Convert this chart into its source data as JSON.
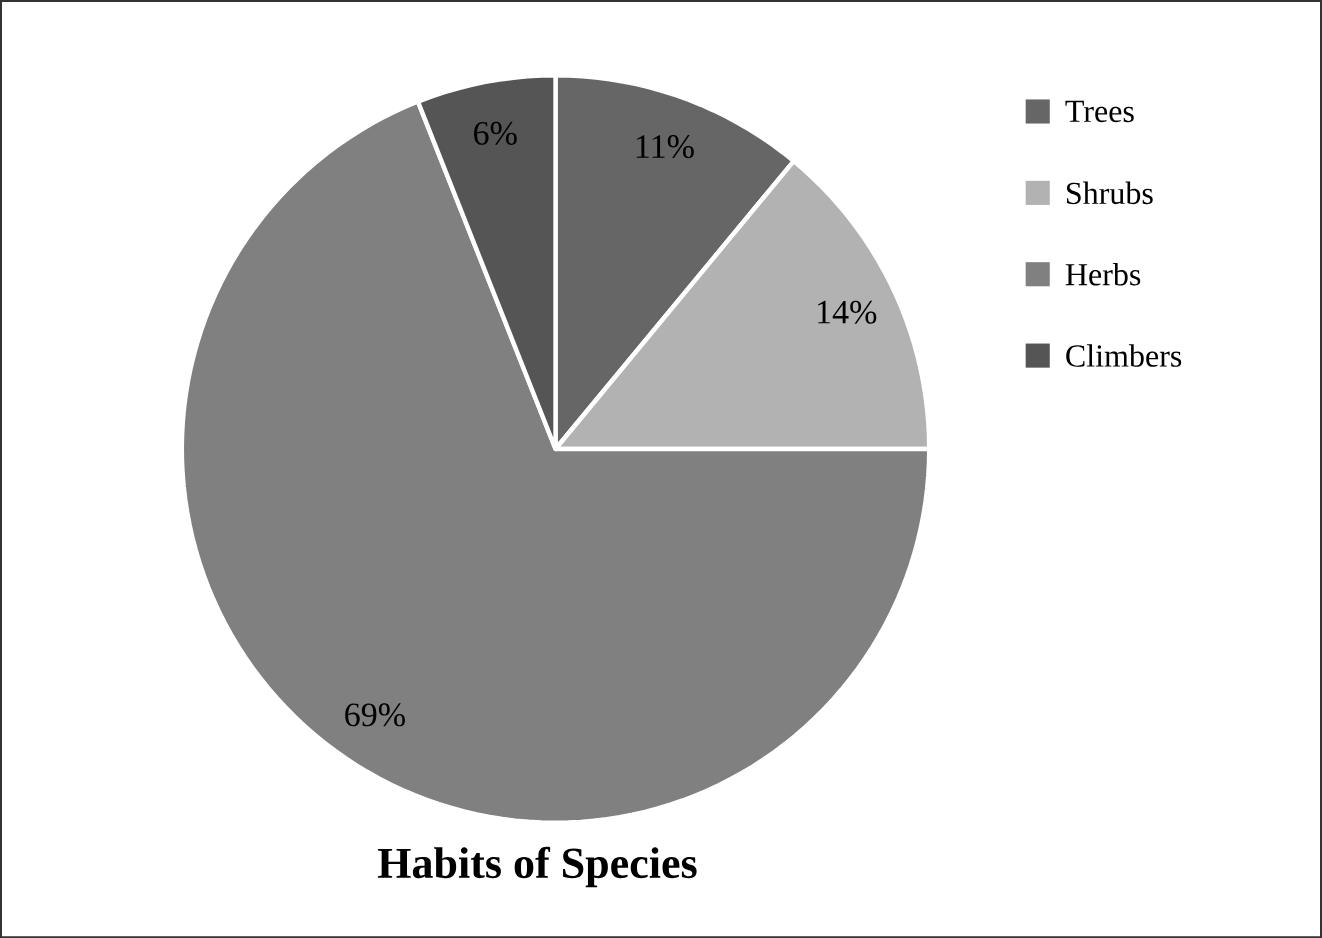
{
  "chart_data": {
    "type": "pie",
    "title": "Habits of Species",
    "categories": [
      "Trees",
      "Shrubs",
      "Herbs",
      "Climbers"
    ],
    "values": [
      11,
      14,
      69,
      6
    ],
    "value_labels": [
      "11%",
      "14%",
      "69%",
      "6%"
    ],
    "colors": [
      "#666666",
      "#b2b2b2",
      "#808080",
      "#555555"
    ],
    "legend": "top right"
  }
}
